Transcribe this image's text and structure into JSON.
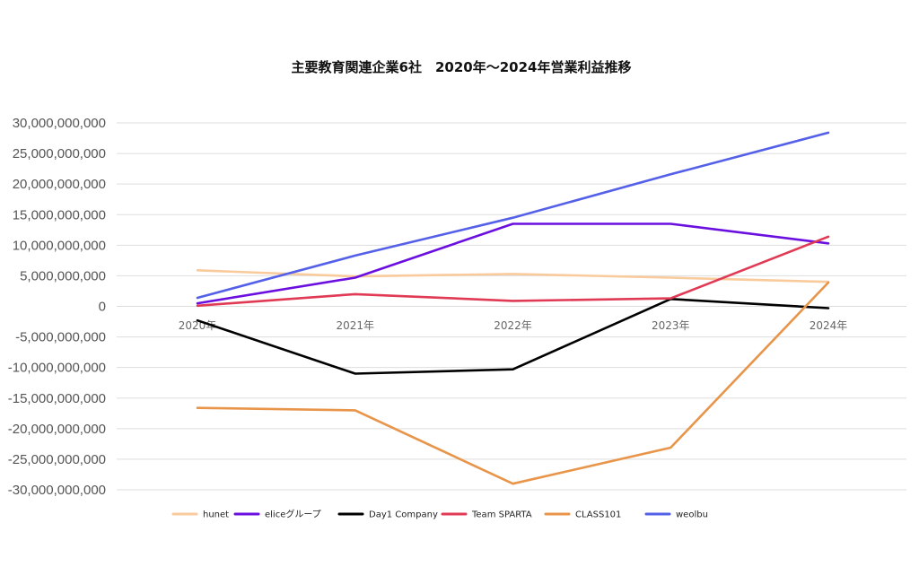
{
  "chart_data": {
    "type": "line",
    "title": "主要教育関連企業6社　2020年〜2024年営業利益推移",
    "xlabel": "",
    "ylabel": "",
    "categories": [
      "2020年",
      "2021年",
      "2022年",
      "2023年",
      "2024年"
    ],
    "ylim": [
      -30000000000,
      30000000000
    ],
    "yticks": [
      30000000000,
      25000000000,
      20000000000,
      15000000000,
      10000000000,
      5000000000,
      0,
      -5000000000,
      -10000000000,
      -15000000000,
      -20000000000,
      -25000000000,
      -30000000000
    ],
    "ytick_labels": [
      "30,000,000,000",
      "25,000,000,000",
      "20,000,000,000",
      "15,000,000,000",
      "10,000,000,000",
      "5,000,000,000",
      "0",
      "-5,000,000,000",
      "-10,000,000,000",
      "-15,000,000,000",
      "-20,000,000,000",
      "-25,000,000,000",
      "-30,000,000,000"
    ],
    "grid": true,
    "legend_position": "bottom",
    "series": [
      {
        "name": "hunet",
        "color": "#f9cb9c",
        "values": [
          5900000000,
          4900000000,
          5300000000,
          4700000000,
          4000000000
        ]
      },
      {
        "name": "eliceグループ",
        "color": "#6a0fe0",
        "values": [
          500000000,
          4700000000,
          13500000000,
          13500000000,
          10300000000
        ]
      },
      {
        "name": "Day1 Company",
        "color": "#000000",
        "values": [
          -2300000000,
          -11000000000,
          -10300000000,
          1200000000,
          -300000000
        ]
      },
      {
        "name": "Team SPARTA",
        "color": "#e03a55",
        "values": [
          100000000,
          2000000000,
          900000000,
          1300000000,
          11400000000
        ]
      },
      {
        "name": "CLASS101",
        "color": "#e8954a",
        "values": [
          -16600000000,
          -17000000000,
          -29000000000,
          -23100000000,
          3900000000
        ]
      },
      {
        "name": "weolbu",
        "color": "#5560e8",
        "values": [
          1400000000,
          8300000000,
          14500000000,
          21600000000,
          28400000000
        ]
      }
    ]
  }
}
